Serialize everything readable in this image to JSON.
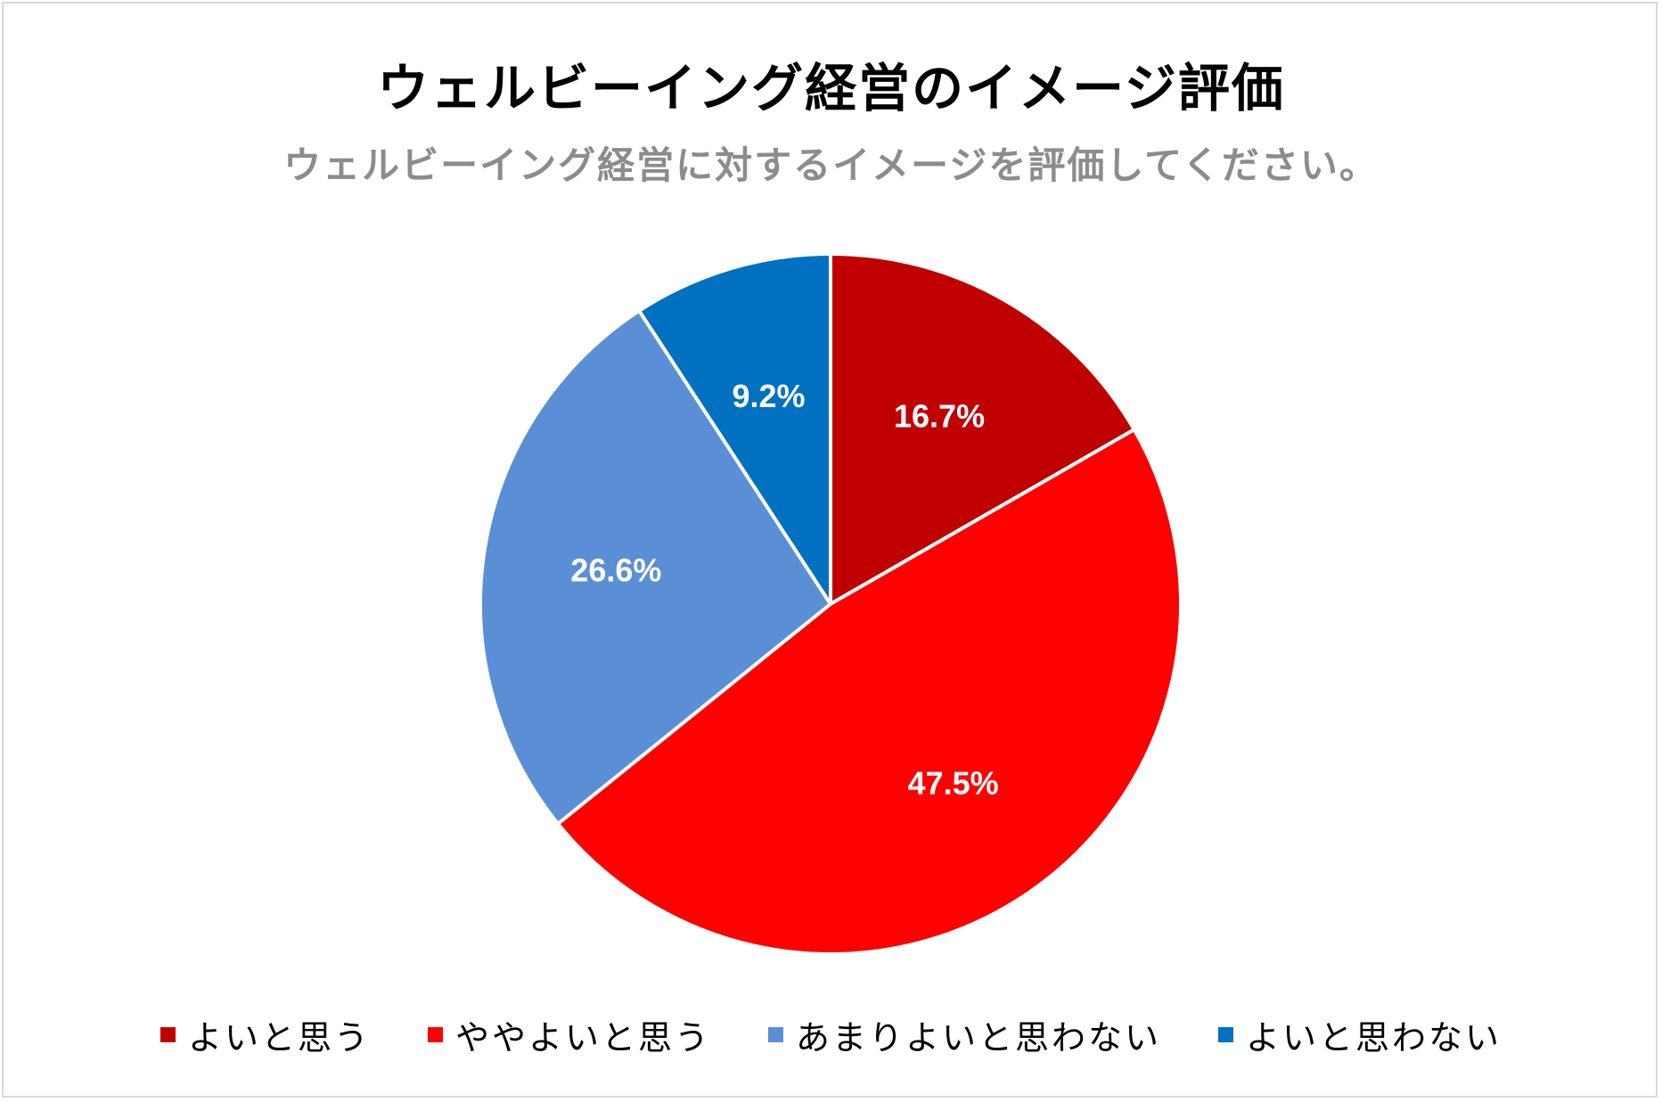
{
  "chart_data": {
    "type": "pie",
    "title": "ウェルビーイング経営のイメージ評価",
    "subtitle": "ウェルビーイング経営に対するイメージを評価してください。",
    "categories": [
      "よいと思う",
      "ややよいと思う",
      "あまりよいと思わない",
      "よいと思わない"
    ],
    "values": [
      16.7,
      47.5,
      26.6,
      9.2
    ],
    "labels": [
      "16.7%",
      "47.5%",
      "26.6%",
      "9.2%"
    ],
    "colors": [
      "#c00000",
      "#ff0000",
      "#5b8fd5",
      "#0070c0"
    ],
    "legend_position": "bottom",
    "start_angle": "12 o'clock",
    "direction": "clockwise"
  }
}
